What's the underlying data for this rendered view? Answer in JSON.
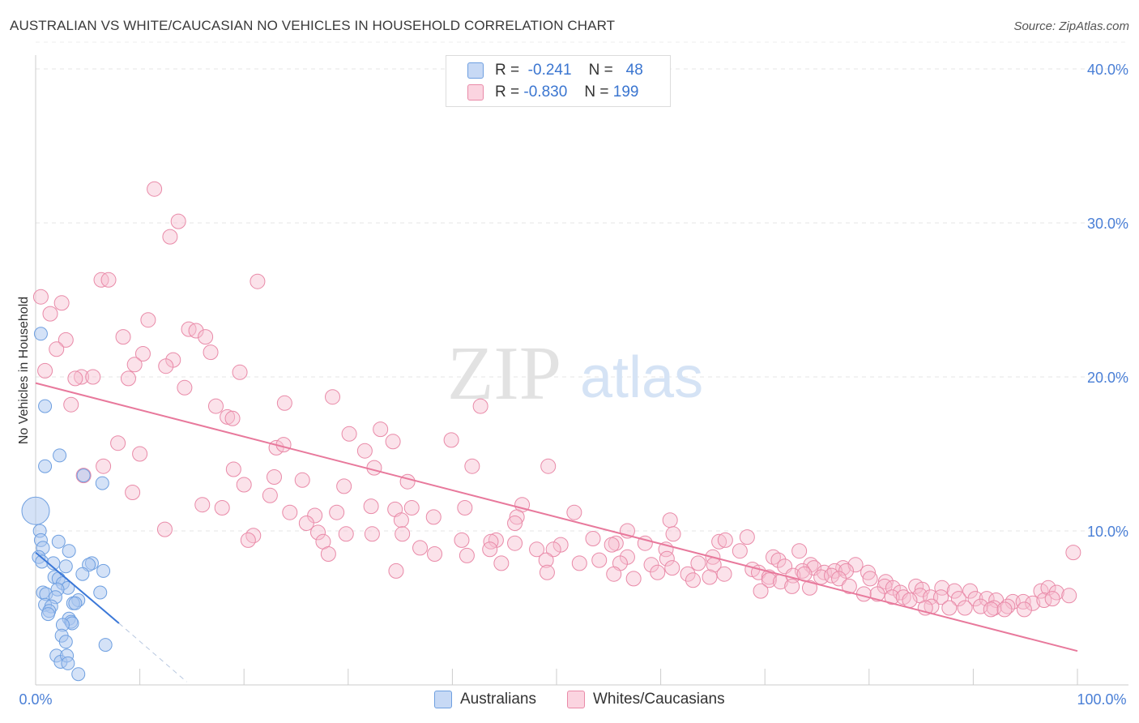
{
  "title": "AUSTRALIAN VS WHITE/CAUCASIAN NO VEHICLES IN HOUSEHOLD CORRELATION CHART",
  "source": "Source: ZipAtlas.com",
  "watermark": {
    "zip": "ZIP",
    "atlas": "atlas"
  },
  "legend": {
    "rows": [
      {
        "r_label": "R =",
        "r_value": "-0.241",
        "n_label": "N =",
        "n_value": "48",
        "color": "#a9c6f0",
        "border": "#6e9fe0"
      },
      {
        "r_label": "R =",
        "r_value": "-0.830",
        "n_label": "N =",
        "n_value": "199",
        "color": "#f7bfd0",
        "border": "#e98aa8"
      }
    ]
  },
  "bottom_legend": [
    {
      "label": "Australians",
      "color": "#a9c6f0",
      "border": "#6e9fe0"
    },
    {
      "label": "Whites/Caucasians",
      "color": "#f7bfd0",
      "border": "#e98aa8"
    }
  ],
  "chart_data": {
    "type": "scatter",
    "title": "AUSTRALIAN VS WHITE/CAUCASIAN NO VEHICLES IN HOUSEHOLD CORRELATION CHART",
    "xlabel": "",
    "ylabel": "No Vehicles in Household",
    "xlim": [
      0,
      100
    ],
    "ylim": [
      0,
      42
    ],
    "x_tick_labels": [
      "0.0%",
      "100.0%"
    ],
    "y_tick_labels": [
      "10.0%",
      "20.0%",
      "30.0%",
      "40.0%"
    ],
    "y_ticks": [
      10,
      20,
      30,
      40
    ],
    "grid": true,
    "legend_position": "top-center",
    "colors": {
      "australians": "#5b8fd8",
      "whites": "#e8799c"
    },
    "series": [
      {
        "name": "Australians",
        "trend": {
          "x": [
            0,
            8
          ],
          "y": [
            8.6,
            4.0
          ]
        },
        "trend_extension": {
          "x": [
            8,
            14.5
          ],
          "y": [
            4.0,
            0.2
          ]
        },
        "points": [
          [
            0.0,
            11.3
          ],
          [
            0.5,
            22.8
          ],
          [
            0.9,
            14.2
          ],
          [
            0.9,
            18.1
          ],
          [
            2.3,
            14.9
          ],
          [
            4.6,
            13.6
          ],
          [
            6.4,
            13.1
          ],
          [
            0.4,
            10.0
          ],
          [
            0.5,
            9.4
          ],
          [
            2.2,
            9.3
          ],
          [
            0.7,
            8.9
          ],
          [
            3.2,
            8.7
          ],
          [
            0.3,
            8.3
          ],
          [
            0.6,
            8.0
          ],
          [
            1.7,
            7.9
          ],
          [
            2.9,
            7.7
          ],
          [
            5.4,
            7.9
          ],
          [
            5.1,
            7.8
          ],
          [
            6.5,
            7.4
          ],
          [
            4.5,
            7.2
          ],
          [
            1.8,
            7.0
          ],
          [
            2.2,
            6.9
          ],
          [
            2.6,
            6.6
          ],
          [
            3.1,
            6.3
          ],
          [
            2.1,
            6.2
          ],
          [
            0.7,
            6.0
          ],
          [
            6.2,
            6.0
          ],
          [
            1.0,
            5.9
          ],
          [
            1.9,
            5.7
          ],
          [
            4.1,
            5.5
          ],
          [
            3.6,
            5.3
          ],
          [
            0.9,
            5.2
          ],
          [
            1.5,
            5.1
          ],
          [
            3.8,
            5.3
          ],
          [
            1.3,
            4.8
          ],
          [
            1.2,
            4.6
          ],
          [
            3.2,
            4.3
          ],
          [
            3.4,
            4.1
          ],
          [
            3.5,
            4.0
          ],
          [
            2.6,
            3.9
          ],
          [
            2.5,
            3.2
          ],
          [
            2.9,
            2.8
          ],
          [
            6.7,
            2.6
          ],
          [
            2.0,
            1.9
          ],
          [
            2.4,
            1.5
          ],
          [
            3.0,
            1.9
          ],
          [
            3.1,
            1.4
          ],
          [
            4.1,
            0.7
          ]
        ]
      },
      {
        "name": "Whites/Caucasians",
        "trend": {
          "x": [
            0,
            100
          ],
          "y": [
            19.6,
            2.2
          ]
        },
        "points": [
          [
            11.4,
            32.2
          ],
          [
            13.7,
            30.1
          ],
          [
            12.9,
            29.1
          ],
          [
            6.3,
            26.3
          ],
          [
            7.0,
            26.3
          ],
          [
            21.3,
            26.2
          ],
          [
            0.5,
            25.2
          ],
          [
            1.4,
            24.1
          ],
          [
            2.5,
            24.8
          ],
          [
            10.8,
            23.7
          ],
          [
            14.7,
            23.1
          ],
          [
            15.4,
            23.0
          ],
          [
            8.4,
            22.6
          ],
          [
            16.3,
            22.6
          ],
          [
            2.9,
            22.4
          ],
          [
            2.0,
            21.8
          ],
          [
            10.3,
            21.5
          ],
          [
            16.8,
            21.6
          ],
          [
            13.2,
            21.1
          ],
          [
            9.5,
            20.8
          ],
          [
            12.5,
            20.7
          ],
          [
            0.9,
            20.4
          ],
          [
            19.6,
            20.3
          ],
          [
            4.4,
            20.0
          ],
          [
            3.8,
            19.9
          ],
          [
            5.5,
            20.0
          ],
          [
            8.9,
            19.9
          ],
          [
            14.3,
            19.3
          ],
          [
            3.4,
            18.2
          ],
          [
            17.3,
            18.1
          ],
          [
            23.9,
            18.3
          ],
          [
            28.5,
            18.7
          ],
          [
            42.7,
            18.1
          ],
          [
            18.4,
            17.4
          ],
          [
            18.9,
            17.3
          ],
          [
            30.1,
            16.3
          ],
          [
            33.1,
            16.6
          ],
          [
            39.9,
            15.9
          ],
          [
            7.9,
            15.7
          ],
          [
            23.1,
            15.4
          ],
          [
            23.8,
            15.6
          ],
          [
            34.3,
            15.8
          ],
          [
            10.0,
            15.0
          ],
          [
            31.6,
            15.2
          ],
          [
            6.5,
            14.2
          ],
          [
            19.0,
            14.0
          ],
          [
            32.5,
            14.1
          ],
          [
            41.9,
            14.2
          ],
          [
            49.2,
            14.2
          ],
          [
            4.6,
            13.6
          ],
          [
            22.9,
            13.5
          ],
          [
            25.6,
            13.3
          ],
          [
            35.7,
            13.2
          ],
          [
            20.0,
            13.0
          ],
          [
            29.6,
            12.9
          ],
          [
            9.3,
            12.5
          ],
          [
            22.5,
            12.3
          ],
          [
            16.0,
            11.7
          ],
          [
            17.9,
            11.5
          ],
          [
            32.2,
            11.6
          ],
          [
            34.5,
            11.4
          ],
          [
            36.1,
            11.5
          ],
          [
            41.2,
            11.5
          ],
          [
            46.7,
            11.7
          ],
          [
            51.7,
            11.2
          ],
          [
            24.4,
            11.2
          ],
          [
            26.8,
            11.0
          ],
          [
            28.9,
            11.2
          ],
          [
            35.1,
            10.7
          ],
          [
            38.2,
            10.9
          ],
          [
            46.2,
            10.9
          ],
          [
            60.9,
            10.7
          ],
          [
            26.0,
            10.5
          ],
          [
            46.0,
            10.5
          ],
          [
            12.4,
            10.1
          ],
          [
            27.1,
            9.9
          ],
          [
            29.8,
            9.8
          ],
          [
            32.3,
            9.8
          ],
          [
            35.2,
            9.8
          ],
          [
            44.2,
            9.4
          ],
          [
            53.5,
            9.5
          ],
          [
            55.7,
            9.2
          ],
          [
            56.8,
            10.0
          ],
          [
            61.2,
            9.8
          ],
          [
            20.9,
            9.7
          ],
          [
            20.4,
            9.4
          ],
          [
            27.6,
            9.3
          ],
          [
            40.9,
            9.4
          ],
          [
            43.7,
            9.3
          ],
          [
            46.0,
            9.2
          ],
          [
            50.4,
            9.1
          ],
          [
            55.3,
            9.1
          ],
          [
            58.5,
            9.2
          ],
          [
            65.6,
            9.3
          ],
          [
            66.2,
            9.4
          ],
          [
            68.3,
            9.6
          ],
          [
            36.9,
            8.9
          ],
          [
            43.6,
            8.8
          ],
          [
            48.1,
            8.8
          ],
          [
            49.7,
            8.8
          ],
          [
            60.5,
            8.8
          ],
          [
            67.6,
            8.7
          ],
          [
            73.3,
            8.7
          ],
          [
            28.1,
            8.5
          ],
          [
            38.3,
            8.5
          ],
          [
            41.4,
            8.4
          ],
          [
            54.1,
            8.1
          ],
          [
            56.8,
            8.3
          ],
          [
            60.6,
            8.2
          ],
          [
            65.0,
            8.3
          ],
          [
            70.8,
            8.3
          ],
          [
            71.3,
            8.1
          ],
          [
            49.0,
            8.1
          ],
          [
            56.1,
            7.9
          ],
          [
            63.6,
            7.9
          ],
          [
            65.1,
            7.8
          ],
          [
            71.9,
            7.7
          ],
          [
            74.4,
            7.8
          ],
          [
            74.7,
            7.6
          ],
          [
            77.5,
            7.6
          ],
          [
            78.7,
            7.8
          ],
          [
            44.7,
            7.9
          ],
          [
            52.2,
            7.9
          ],
          [
            59.1,
            7.8
          ],
          [
            61.1,
            7.6
          ],
          [
            68.8,
            7.5
          ],
          [
            73.6,
            7.4
          ],
          [
            75.7,
            7.3
          ],
          [
            76.7,
            7.4
          ],
          [
            77.8,
            7.4
          ],
          [
            79.9,
            7.3
          ],
          [
            34.6,
            7.4
          ],
          [
            49.1,
            7.3
          ],
          [
            55.5,
            7.2
          ],
          [
            59.7,
            7.3
          ],
          [
            62.6,
            7.2
          ],
          [
            66.1,
            7.2
          ],
          [
            69.4,
            7.3
          ],
          [
            70.4,
            7.0
          ],
          [
            72.7,
            7.1
          ],
          [
            73.8,
            7.2
          ],
          [
            75.4,
            7.0
          ],
          [
            76.4,
            7.1
          ],
          [
            77.1,
            6.9
          ],
          [
            80.1,
            6.9
          ],
          [
            81.6,
            6.7
          ],
          [
            57.4,
            6.9
          ],
          [
            63.1,
            6.8
          ],
          [
            64.7,
            7.0
          ],
          [
            70.4,
            6.8
          ],
          [
            71.5,
            6.7
          ],
          [
            72.6,
            6.4
          ],
          [
            74.3,
            6.3
          ],
          [
            78.1,
            6.4
          ],
          [
            81.5,
            6.4
          ],
          [
            82.3,
            6.3
          ],
          [
            83.0,
            6.0
          ],
          [
            84.5,
            6.4
          ],
          [
            85.1,
            6.2
          ],
          [
            87.0,
            6.3
          ],
          [
            88.2,
            6.1
          ],
          [
            89.7,
            6.1
          ],
          [
            96.5,
            6.1
          ],
          [
            97.2,
            6.3
          ],
          [
            98.0,
            6.0
          ],
          [
            99.2,
            5.8
          ],
          [
            69.6,
            6.1
          ],
          [
            79.5,
            5.9
          ],
          [
            80.8,
            5.9
          ],
          [
            82.2,
            5.7
          ],
          [
            83.3,
            5.7
          ],
          [
            84.9,
            5.8
          ],
          [
            85.9,
            5.7
          ],
          [
            86.9,
            5.7
          ],
          [
            88.6,
            5.6
          ],
          [
            90.2,
            5.6
          ],
          [
            91.3,
            5.6
          ],
          [
            92.2,
            5.5
          ],
          [
            93.8,
            5.4
          ],
          [
            94.8,
            5.4
          ],
          [
            95.7,
            5.3
          ],
          [
            96.8,
            5.5
          ],
          [
            97.6,
            5.6
          ],
          [
            99.6,
            8.6
          ],
          [
            86.0,
            5.1
          ],
          [
            87.7,
            5.0
          ],
          [
            89.2,
            5.0
          ],
          [
            90.7,
            5.1
          ],
          [
            92.0,
            5.0
          ],
          [
            93.3,
            5.1
          ],
          [
            94.9,
            4.9
          ],
          [
            83.9,
            5.5
          ],
          [
            85.4,
            5.0
          ],
          [
            91.7,
            4.9
          ],
          [
            93.0,
            4.9
          ]
        ]
      }
    ]
  }
}
